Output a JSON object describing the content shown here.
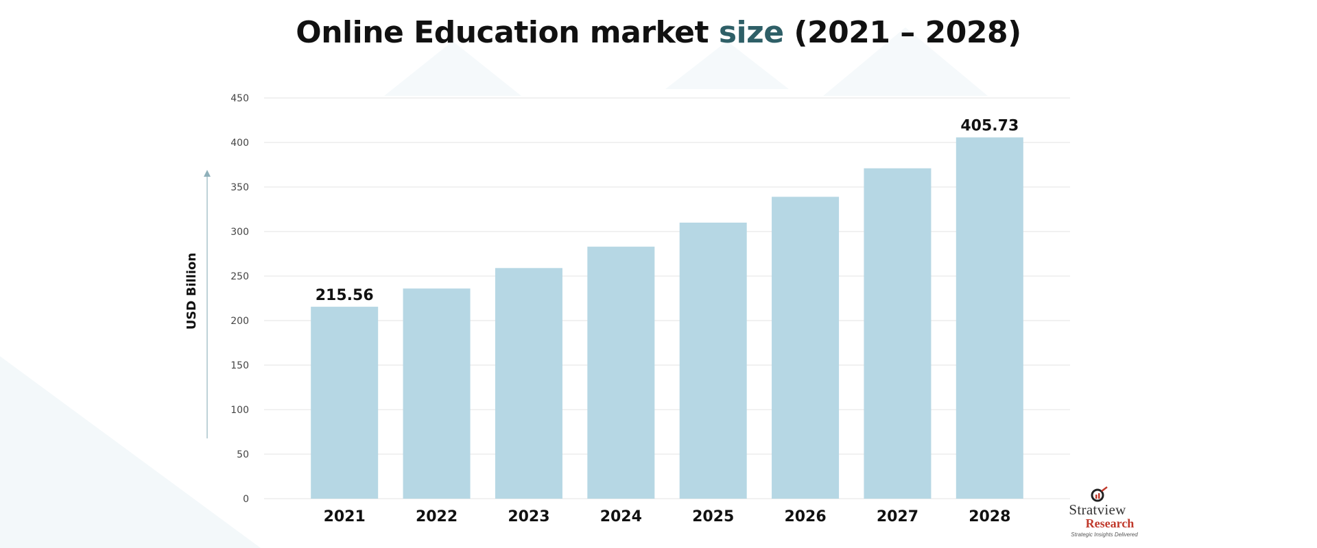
{
  "page": {
    "title_main": "Online Education market",
    "title_accent": "size",
    "title_years": "(2021 – 2028)"
  },
  "chart_data": {
    "type": "bar",
    "title": "Online Education market size (2021 – 2028)",
    "xlabel": "",
    "ylabel": "USD Billion",
    "categories": [
      "2021",
      "2022",
      "2023",
      "2024",
      "2025",
      "2026",
      "2027",
      "2028"
    ],
    "values": [
      215.56,
      236,
      259,
      283,
      310,
      339,
      371,
      405.73
    ],
    "value_labels": [
      "215.56",
      "",
      "",
      "",
      "",
      "",
      "",
      "405.73"
    ],
    "ylim": [
      0,
      450
    ],
    "yticks": [
      0,
      50,
      100,
      150,
      200,
      250,
      300,
      350,
      400,
      450
    ],
    "grid": true,
    "bar_color": "#b6d7e4",
    "grid_color": "#e3e3e3"
  },
  "logo": {
    "name": "Stratview",
    "sub": "Research",
    "tagline": "Strategic Insights Delivered",
    "mark": "magnifier-icon"
  },
  "colors": {
    "title_accent": "#2e5f67",
    "background_shape": "#f3f8fa",
    "logo_red": "#c0392b"
  }
}
